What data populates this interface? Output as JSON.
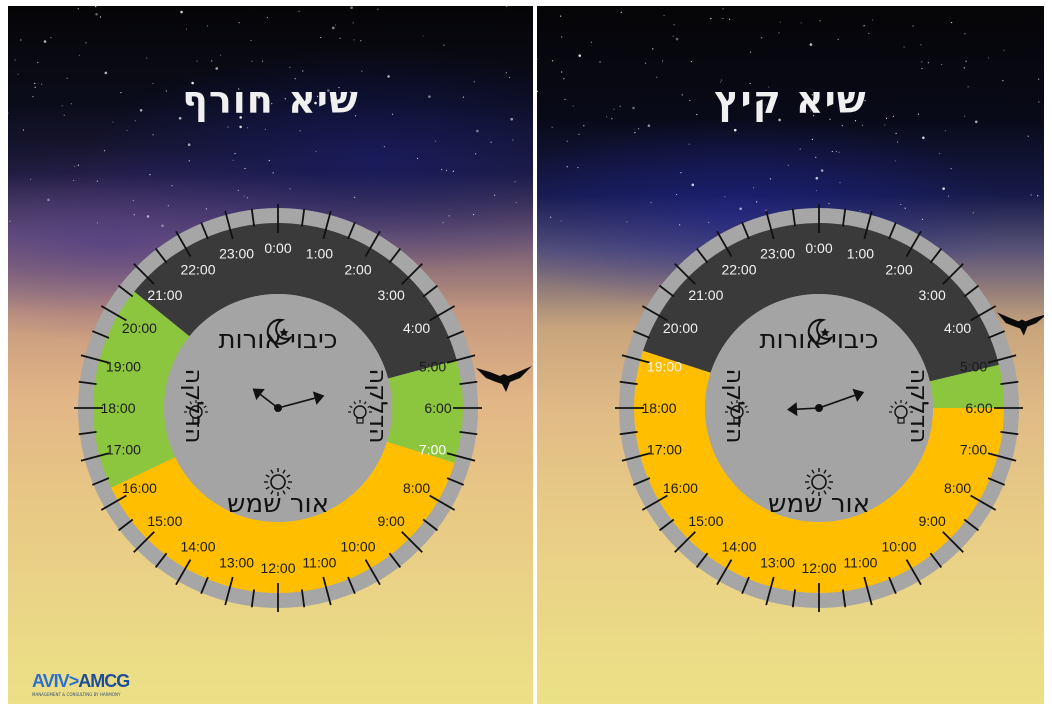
{
  "panels": [
    {
      "id": "winter",
      "title": "שיא חורף",
      "segments": [
        {
          "name": "lights-off",
          "color": "#3a3a3a",
          "start": 20.6,
          "end": 5.0
        },
        {
          "name": "lighting-morning",
          "color": "#8cc63f",
          "start": 5.0,
          "end": 7.15
        },
        {
          "name": "daylight",
          "color": "#ffbf00",
          "start": 7.15,
          "end": 16.3
        },
        {
          "name": "lighting-evening",
          "color": "#8cc63f",
          "start": 16.3,
          "end": 20.6
        }
      ],
      "hand_hour": 20.5,
      "hand_minute": 5
    },
    {
      "id": "summer",
      "title": "שיא קיץ",
      "segments": [
        {
          "name": "lights-off",
          "color": "#3a3a3a",
          "start": 19.2,
          "end": 5.1
        },
        {
          "name": "lighting-morning",
          "color": "#8cc63f",
          "start": 5.1,
          "end": 6.0
        },
        {
          "name": "daylight",
          "color": "#ffbf00",
          "start": 6.0,
          "end": 19.2
        }
      ],
      "hand_hour": 17.8,
      "hand_minute": 4.7
    }
  ],
  "hour_labels": [
    "0:00",
    "1:00",
    "2:00",
    "3:00",
    "4:00",
    "5:00",
    "6:00",
    "7:00",
    "8:00",
    "9:00",
    "10:00",
    "11:00",
    "12:00",
    "13:00",
    "14:00",
    "15:00",
    "16:00",
    "17:00",
    "18:00",
    "19:00",
    "20:00",
    "21:00",
    "22:00",
    "23:00"
  ],
  "inner_labels": {
    "lights_off": "כיבוי אורות",
    "lighting": "הדלקה",
    "sunlight": "אור שמש"
  },
  "icons": {
    "moon": "moon-icon",
    "sun": "sun-icon",
    "bulb": "lightbulb-icon"
  },
  "logo": {
    "part1": "AVIV",
    "part2": "AMCG",
    "tagline": "MANAGEMENT & CONSULTING BY HARMONY"
  }
}
